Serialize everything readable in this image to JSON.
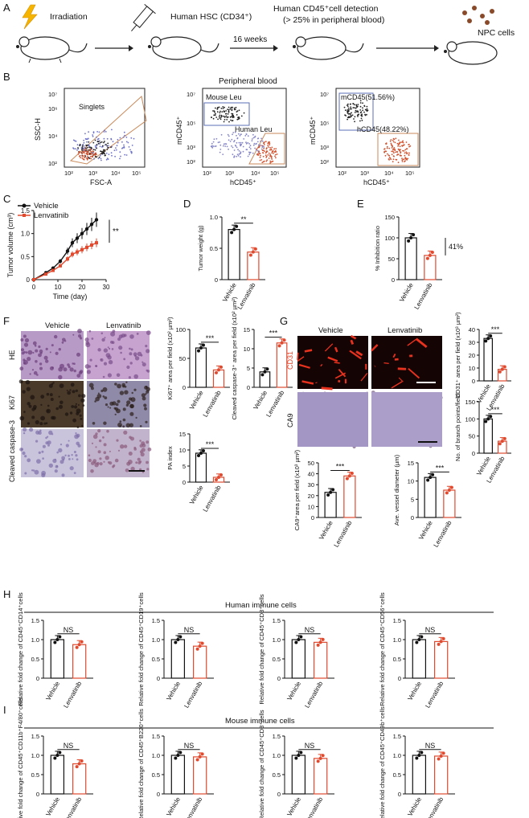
{
  "panel_a": {
    "label": "A",
    "steps": [
      "Irradiation",
      "Human HSC (CD34⁺)",
      "Human CD45⁺cell detection",
      "(> 25% in peripheral blood)",
      "NPC cells"
    ],
    "duration": "16 weeks"
  },
  "panel_b": {
    "label": "B",
    "title": "Peripheral blood",
    "plot1": {
      "xlabel": "FSC-A",
      "ylabel": "SSC-H",
      "gate": "Singlets"
    },
    "plot2": {
      "xlabel": "hCD45⁺",
      "ylabel": "mCD45⁺",
      "gate_top": "Mouse Leu",
      "gate_bottom": "Human Leu"
    },
    "plot3": {
      "xlabel": "hCD45⁺",
      "ylabel": "mCD45⁺",
      "gate_top": "mCD45(51.56%)",
      "gate_bottom": "hCD45(48.22%)"
    },
    "x_ticks": [
      "10²",
      "10³",
      "10⁴",
      "10⁵"
    ],
    "y_ticks": [
      "10²",
      "10³",
      "10⁴",
      "10⁵",
      "10⁶",
      "10⁷"
    ],
    "y_ticks_short": [
      "10²",
      "10⁴",
      "10⁶"
    ]
  },
  "panel_labels": {
    "c": "C",
    "d": "D",
    "e": "E",
    "f": "F",
    "g": "G",
    "h": "H",
    "i": "I"
  },
  "groups": {
    "vehicle": "Vehicle",
    "lenvatinib": "Lenvatinib"
  },
  "colors": {
    "vehicle": "#111111",
    "lenvatinib": "#e04a2f",
    "mouse_gate": "#5b6fb8",
    "human_gate": "#c98a5b"
  },
  "sig": {
    "two": "**",
    "three": "***",
    "ns": "NS",
    "inhibition": "41%"
  },
  "chart_data": [
    {
      "id": "C",
      "type": "line",
      "xlabel": "Time (day)",
      "ylabel": "Tumor volume (cm³)",
      "xlim": [
        0,
        30
      ],
      "ylim": [
        0,
        1.5
      ],
      "x_ticks": [
        0,
        10,
        20,
        30
      ],
      "y_ticks": [
        0,
        0.5,
        1.0,
        1.5
      ],
      "series": [
        {
          "name": "Vehicle",
          "x": [
            0,
            5,
            8,
            11,
            14,
            16,
            18,
            20,
            22,
            24,
            26
          ],
          "values": [
            0.0,
            0.15,
            0.25,
            0.4,
            0.62,
            0.8,
            0.9,
            1.0,
            1.1,
            1.2,
            1.3
          ]
        },
        {
          "name": "Lenvatinib",
          "x": [
            0,
            5,
            8,
            11,
            14,
            16,
            18,
            20,
            22,
            24,
            26
          ],
          "values": [
            0.0,
            0.12,
            0.2,
            0.3,
            0.45,
            0.55,
            0.6,
            0.65,
            0.7,
            0.75,
            0.8
          ]
        }
      ],
      "annotation": "**"
    },
    {
      "id": "D",
      "type": "bar",
      "ylabel": "Tumor weight (g)",
      "ylim": [
        0,
        1.0
      ],
      "y_ticks": [
        0,
        0.5,
        1.0
      ],
      "categories": [
        "Vehicle",
        "Lenvatinib"
      ],
      "values": [
        0.8,
        0.44
      ],
      "sig": "**"
    },
    {
      "id": "E",
      "type": "bar",
      "ylabel": "% Inhibition ratio",
      "ylim": [
        0,
        150
      ],
      "y_ticks": [
        0,
        50,
        100,
        150
      ],
      "categories": [
        "Vehicle",
        "Lenvatinib"
      ],
      "values": [
        100,
        58
      ],
      "annotation": "41%"
    },
    {
      "id": "F1",
      "type": "bar",
      "ylabel": "Ki67⁺ area per field (x10² µm²)",
      "ylim": [
        0,
        100
      ],
      "y_ticks": [
        0,
        50,
        100
      ],
      "categories": [
        "Vehicle",
        "Lenvatinib"
      ],
      "values": [
        68,
        30
      ],
      "sig": "***"
    },
    {
      "id": "F2",
      "type": "bar",
      "ylabel": "Cleaved caspase-3⁺ area per field (x10² µm²)",
      "ylim": [
        0,
        15
      ],
      "y_ticks": [
        0,
        5,
        10,
        15
      ],
      "categories": [
        "Vehicle",
        "Lenvatinib"
      ],
      "values": [
        4,
        11.5
      ],
      "sig": "***"
    },
    {
      "id": "F3",
      "type": "bar",
      "ylabel": "PA index",
      "ylim": [
        0,
        15
      ],
      "y_ticks": [
        0,
        5,
        10,
        15
      ],
      "categories": [
        "Vehicle",
        "Lenvatinib"
      ],
      "values": [
        9,
        1.5
      ],
      "sig": "***"
    },
    {
      "id": "G1",
      "type": "bar",
      "ylabel": "CD31⁺ area per field (x10³ µm²)",
      "ylim": [
        0,
        40
      ],
      "y_ticks": [
        0,
        10,
        20,
        30,
        40
      ],
      "categories": [
        "Vehicle",
        "Lenvatinib"
      ],
      "values": [
        33,
        9
      ],
      "sig": "***"
    },
    {
      "id": "G2",
      "type": "bar",
      "ylabel": "No. of branch points/field",
      "ylim": [
        0,
        150
      ],
      "y_ticks": [
        0,
        50,
        100,
        150
      ],
      "categories": [
        "Vehicle",
        "Lenvatinib"
      ],
      "values": [
        100,
        35
      ],
      "sig": "***"
    },
    {
      "id": "G3",
      "type": "bar",
      "ylabel": "CA9⁺area per field (x10³ µm²)",
      "ylim": [
        0,
        50
      ],
      "y_ticks": [
        0,
        10,
        20,
        30,
        40,
        50
      ],
      "categories": [
        "Vehicle",
        "Lenvatinib"
      ],
      "values": [
        23,
        38
      ],
      "sig": "***"
    },
    {
      "id": "G4",
      "type": "bar",
      "ylabel": "Ave. vessel diameter (µm)",
      "ylim": [
        0,
        15
      ],
      "y_ticks": [
        0,
        5,
        10,
        15
      ],
      "categories": [
        "Vehicle",
        "Lenvatinib"
      ],
      "values": [
        11,
        7.5
      ],
      "sig": "***"
    },
    {
      "id": "H1",
      "type": "bar",
      "group_title": "Human immune cells",
      "ylabel": "Relative fold change of CD45⁺CD14⁺cells",
      "ylim": [
        0,
        1.5
      ],
      "y_ticks": [
        0,
        0.5,
        1.0,
        1.5
      ],
      "categories": [
        "Vehicle",
        "Lenvatinib"
      ],
      "values": [
        1.0,
        0.87
      ],
      "sig": "NS"
    },
    {
      "id": "H2",
      "type": "bar",
      "ylabel": "Relative fold change of CD45⁺CD19⁺cells",
      "ylim": [
        0,
        1.5
      ],
      "y_ticks": [
        0,
        0.5,
        1.0,
        1.5
      ],
      "categories": [
        "Vehicle",
        "Lenvatinib"
      ],
      "values": [
        1.0,
        0.83
      ],
      "sig": "NS"
    },
    {
      "id": "H3",
      "type": "bar",
      "ylabel": "Relative fold change of CD45⁺CD3⁺cells",
      "ylim": [
        0,
        1.5
      ],
      "y_ticks": [
        0,
        0.5,
        1.0,
        1.5
      ],
      "categories": [
        "Vehicle",
        "Lenvatinib"
      ],
      "values": [
        1.0,
        0.93
      ],
      "sig": "NS"
    },
    {
      "id": "H4",
      "type": "bar",
      "ylabel": "Relative fold change of CD45⁺CD56⁺cells",
      "ylim": [
        0,
        1.5
      ],
      "y_ticks": [
        0,
        0.5,
        1.0,
        1.5
      ],
      "categories": [
        "Vehicle",
        "Lenvatinib"
      ],
      "values": [
        1.0,
        0.95
      ],
      "sig": "NS"
    },
    {
      "id": "I1",
      "type": "bar",
      "group_title": "Mouse immune cells",
      "ylabel": "Relative fold change of CD45⁺CD11b⁺F4/80⁺cells",
      "ylim": [
        0,
        1.5
      ],
      "y_ticks": [
        0,
        0.5,
        1.0,
        1.5
      ],
      "categories": [
        "Vehicle",
        "Lenvatinib"
      ],
      "values": [
        1.0,
        0.78
      ],
      "sig": "NS"
    },
    {
      "id": "I2",
      "type": "bar",
      "ylabel": "Relative fold change of CD45⁺B220⁺cells",
      "ylim": [
        0,
        1.5
      ],
      "y_ticks": [
        0,
        0.5,
        1.0,
        1.5
      ],
      "categories": [
        "Vehicle",
        "Lenvatinib"
      ],
      "values": [
        1.0,
        0.96
      ],
      "sig": "NS"
    },
    {
      "id": "I3",
      "type": "bar",
      "ylabel": "Relative fold change of CD45⁺CD3⁺cells",
      "ylim": [
        0,
        1.5
      ],
      "y_ticks": [
        0,
        0.5,
        1.0,
        1.5
      ],
      "categories": [
        "Vehicle",
        "Lenvatinib"
      ],
      "values": [
        1.0,
        0.92
      ],
      "sig": "NS"
    },
    {
      "id": "I4",
      "type": "bar",
      "ylabel": "Relative fold change of CD45⁺CD49b⁺cells",
      "ylim": [
        0,
        1.5
      ],
      "y_ticks": [
        0,
        0.5,
        1.0,
        1.5
      ],
      "categories": [
        "Vehicle",
        "Lenvatinib"
      ],
      "values": [
        1.0,
        0.98
      ],
      "sig": "NS"
    }
  ],
  "histology": {
    "f_rows": [
      "HE",
      "Ki67",
      "Cleaved caspase-3"
    ],
    "g_rows": [
      "CD31",
      "CA9"
    ]
  }
}
